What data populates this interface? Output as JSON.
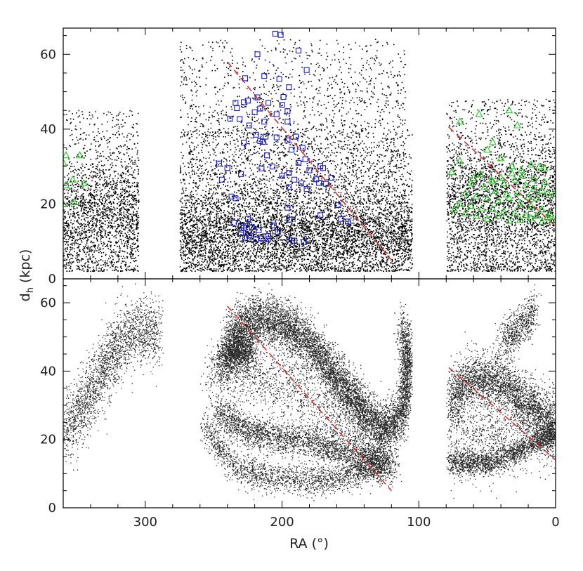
{
  "chart_data": [
    {
      "type": "scatter",
      "panel": "top",
      "xlim": [
        360,
        0
      ],
      "ylim": [
        0,
        67
      ],
      "x_reversed": true,
      "yticks": [
        0,
        20,
        40,
        60
      ],
      "ytick_labels": [
        "0",
        "20",
        "40",
        "60"
      ],
      "grid": false,
      "colors": {
        "background_points": "#000000",
        "squares": "#1a1ad6",
        "triangles": "#22cc22",
        "dashed_line": "#e03030"
      },
      "background_density": [
        {
          "ra_range": [
            305,
            360
          ],
          "d_range": [
            2,
            45
          ],
          "peak_d": 17,
          "weight": 0.14
        },
        {
          "ra_range": [
            105,
            275
          ],
          "d_range": [
            2,
            40
          ],
          "peak_d": 12,
          "weight": 0.42
        },
        {
          "ra_range": [
            110,
            275
          ],
          "d_range": [
            20,
            64
          ],
          "peak_d": 40,
          "weight": 0.12
        },
        {
          "ra_range": [
            0,
            80
          ],
          "d_range": [
            2,
            48
          ],
          "peak_d": 20,
          "weight": 0.22
        }
      ],
      "series": [
        {
          "marker": "square",
          "points": [
            [
              205,
              65.5
            ],
            [
              201,
              65.2
            ],
            [
              218,
              60
            ],
            [
              188,
              61
            ],
            [
              182,
              55.8
            ],
            [
              227,
              53.6
            ],
            [
              213,
              54.2
            ],
            [
              202,
              53.4
            ],
            [
              195,
              51.2
            ],
            [
              228,
              47.2
            ],
            [
              225,
              47.6
            ],
            [
              218,
              48.5
            ],
            [
              199,
              48.6
            ],
            [
              210,
              47
            ],
            [
              200,
              46.5
            ],
            [
              234,
              47
            ],
            [
              233,
              45.6
            ],
            [
              216,
              45.5
            ],
            [
              220,
              44.5
            ],
            [
              204,
              44
            ],
            [
              196,
              44.8
            ],
            [
              238,
              42.8
            ],
            [
              231,
              42.7
            ],
            [
              213,
              42
            ],
            [
              224,
              41
            ],
            [
              196,
              42
            ],
            [
              219,
              38.5
            ],
            [
              212,
              38
            ],
            [
              204,
              37.8
            ],
            [
              190,
              38
            ],
            [
              228,
              36.4
            ],
            [
              216,
              36.8
            ],
            [
              214,
              36.6
            ],
            [
              196,
              37
            ],
            [
              185,
              35
            ],
            [
              193,
              34.5
            ],
            [
              211,
              33
            ],
            [
              183,
              32
            ],
            [
              188,
              31
            ],
            [
              207,
              30
            ],
            [
              215,
              29.5
            ],
            [
              170,
              29.6
            ],
            [
              172,
              30.2
            ],
            [
              180,
              29
            ],
            [
              246,
              30.8
            ],
            [
              240,
              29.6
            ],
            [
              230,
              28
            ],
            [
              195,
              28.3
            ],
            [
              200,
              27.5
            ],
            [
              164,
              27
            ],
            [
              175,
              26.6
            ],
            [
              191,
              26.5
            ],
            [
              186,
              25.5
            ],
            [
              173,
              25.6
            ],
            [
              168,
              25.4
            ],
            [
              195,
              24.5
            ],
            [
              244,
              26.5
            ],
            [
              182,
              24
            ],
            [
              237,
              22
            ],
            [
              234,
              21.5
            ],
            [
              159,
              19.7
            ],
            [
              196,
              19
            ],
            [
              172,
              17
            ],
            [
              157,
              16
            ],
            [
              225,
              16
            ],
            [
              195,
              15.8
            ],
            [
              152,
              15.3
            ],
            [
              235,
              15
            ],
            [
              230,
              14.2
            ],
            [
              228,
              13.6
            ],
            [
              222,
              13.8
            ],
            [
              217,
              13
            ],
            [
              203,
              12.5
            ],
            [
              230,
              12.2
            ],
            [
              224,
              11.6
            ],
            [
              210,
              11.4
            ],
            [
              227,
              11
            ],
            [
              219,
              10.6
            ],
            [
              215,
              10.8
            ],
            [
              210,
              10.6
            ],
            [
              195,
              10.5
            ],
            [
              191,
              10.2
            ],
            [
              184,
              9.8
            ],
            [
              206,
              14.3
            ]
          ]
        },
        {
          "marker": "triangle",
          "points": [
            [
              56,
              44
            ],
            [
              34,
              45
            ],
            [
              70,
              42
            ],
            [
              28,
              41
            ],
            [
              46,
              36.5
            ],
            [
              358,
              33
            ],
            [
              348,
              33
            ],
            [
              50,
              34.5
            ],
            [
              70,
              31.5
            ],
            [
              40,
              32.2
            ],
            [
              32,
              30
            ],
            [
              25,
              29
            ],
            [
              18,
              30.5
            ],
            [
              12,
              30
            ],
            [
              8,
              29.5
            ],
            [
              360,
              31
            ],
            [
              353,
              26.5
            ],
            [
              358,
              25
            ],
            [
              345,
              25.5
            ],
            [
              76,
              28.5
            ],
            [
              60,
              27
            ],
            [
              55,
              28
            ],
            [
              46,
              26
            ],
            [
              38,
              25.5
            ],
            [
              30,
              26.5
            ],
            [
              22,
              25
            ],
            [
              16,
              24
            ],
            [
              10,
              23.5
            ],
            [
              6,
              23
            ],
            [
              62,
              25.5
            ],
            [
              52,
              24.5
            ],
            [
              44,
              23.5
            ],
            [
              36,
              22.5
            ],
            [
              28,
              23
            ],
            [
              20,
              21.8
            ],
            [
              14,
              21.5
            ],
            [
              66,
              22.8
            ],
            [
              58,
              22
            ],
            [
              50,
              21.5
            ],
            [
              42,
              20.8
            ],
            [
              34,
              21.5
            ],
            [
              26,
              20
            ],
            [
              18,
              19.5
            ],
            [
              10,
              18.5
            ],
            [
              352,
              20.5
            ],
            [
              360,
              20
            ],
            [
              70,
              20
            ],
            [
              62,
              19.5
            ],
            [
              54,
              18.8
            ],
            [
              46,
              18.6
            ],
            [
              38,
              18
            ],
            [
              30,
              17.5
            ],
            [
              22,
              17
            ],
            [
              14,
              16.8
            ],
            [
              6,
              16.5
            ],
            [
              2,
              15.8
            ],
            [
              74,
              18.5
            ],
            [
              66,
              17.5
            ],
            [
              58,
              16.8
            ],
            [
              50,
              16
            ],
            [
              42,
              16.8
            ],
            [
              34,
              15.5
            ],
            [
              26,
              15.7
            ],
            [
              18,
              16.2
            ],
            [
              10,
              15.2
            ],
            [
              4,
              17.3
            ],
            [
              47,
              26.3
            ],
            [
              40,
              27
            ],
            [
              32,
              28.2
            ],
            [
              24,
              27.6
            ],
            [
              16,
              26.7
            ],
            [
              8,
              25.8
            ],
            [
              1,
              22.6
            ]
          ]
        }
      ],
      "lines": [
        {
          "style": "dashed",
          "points": [
            [
              240,
              58
            ],
            [
              120,
              5
            ]
          ]
        },
        {
          "style": "dashed",
          "points": [
            [
              78,
              40.5
            ],
            [
              0,
              14
            ]
          ]
        }
      ]
    },
    {
      "type": "scatter",
      "panel": "bottom",
      "xlim": [
        360,
        0
      ],
      "ylim": [
        0,
        67
      ],
      "x_reversed": true,
      "xticks": [
        300,
        200,
        100,
        0
      ],
      "xtick_labels": [
        "300",
        "200",
        "100",
        "0"
      ],
      "yticks": [
        0,
        20,
        40,
        60
      ],
      "ytick_labels": [
        "0",
        "20",
        "40",
        "60"
      ],
      "xlabel": "RA (°)",
      "ylabel": "dh (kpc)",
      "ylabel_main": "d",
      "ylabel_subscript": "h",
      "ylabel_unit": " (kpc)",
      "grid": false,
      "colors": {
        "points": "#000000",
        "dashed_line": "#e03030"
      },
      "density_structures": [
        {
          "path": [
            [
              245,
              43
            ],
            [
              232,
              46
            ],
            [
              222,
              46
            ]
          ],
          "spread": 3.0,
          "weight": 0.06
        },
        {
          "path": [
            [
              240,
              50
            ],
            [
              220,
              55
            ],
            [
              200,
              54
            ],
            [
              180,
              48
            ],
            [
              160,
              38
            ],
            [
              140,
              28
            ],
            [
              125,
              22
            ],
            [
              112,
              28
            ],
            [
              108,
              42
            ],
            [
              112,
              53
            ]
          ],
          "spread": 3.6,
          "weight": 0.34
        },
        {
          "path": [
            [
              248,
              28
            ],
            [
              225,
              22
            ],
            [
              205,
              21
            ],
            [
              185,
              20
            ],
            [
              160,
              17
            ],
            [
              130,
              13
            ],
            [
              118,
              12
            ]
          ],
          "spread": 2.6,
          "weight": 0.13
        },
        {
          "path": [
            [
              258,
              24
            ],
            [
              235,
              12
            ],
            [
              205,
              8.5
            ],
            [
              170,
              8
            ],
            [
              145,
              10
            ],
            [
              125,
              14
            ]
          ],
          "spread": 2.2,
          "weight": 0.09
        },
        {
          "path": [
            [
              255,
              38
            ],
            [
              230,
              40
            ],
            [
              200,
              37
            ],
            [
              170,
              30
            ],
            [
              145,
              22
            ],
            [
              125,
              16
            ]
          ],
          "spread": 5.0,
          "weight": 0.08
        },
        {
          "path": [
            [
              360,
              22
            ],
            [
              345,
              30
            ],
            [
              330,
              40
            ],
            [
              320,
              48
            ],
            [
              305,
              52
            ],
            [
              290,
              51
            ]
          ],
          "spread": 5.0,
          "weight": 0.1
        },
        {
          "path": [
            [
              78,
              32
            ],
            [
              60,
              38
            ],
            [
              40,
              36
            ],
            [
              20,
              30
            ],
            [
              0,
              22
            ]
          ],
          "spread": 4.0,
          "weight": 0.14
        },
        {
          "path": [
            [
              78,
              13
            ],
            [
              50,
              13
            ],
            [
              30,
              16
            ],
            [
              10,
              20
            ],
            [
              0,
              22
            ]
          ],
          "spread": 1.6,
          "weight": 0.08
        },
        {
          "path": [
            [
              40,
              48
            ],
            [
              25,
              53
            ],
            [
              15,
              58
            ]
          ],
          "spread": 3.0,
          "weight": 0.03
        },
        {
          "path": [
            [
              78,
              22
            ],
            [
              50,
              20
            ],
            [
              20,
              22
            ],
            [
              0,
              24
            ]
          ],
          "spread": 6.0,
          "weight": 0.05
        }
      ],
      "lines": [
        {
          "style": "dashed",
          "points": [
            [
              240,
              59
            ],
            [
              120,
              5
            ]
          ]
        },
        {
          "style": "dashed",
          "points": [
            [
              78,
              41
            ],
            [
              0,
              14
            ]
          ]
        }
      ]
    }
  ]
}
